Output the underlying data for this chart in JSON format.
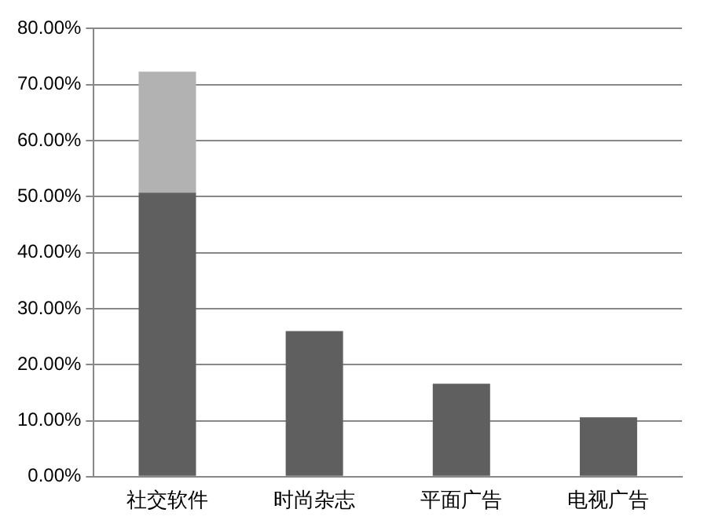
{
  "chart_data": {
    "type": "bar",
    "stacked": true,
    "categories": [
      "社交软件",
      "时尚杂志",
      "平面广告",
      "电视广告"
    ],
    "series": [
      {
        "color": "#5f5f5f",
        "values": [
          50.7,
          26.0,
          16.6,
          10.6
        ]
      },
      {
        "color": "#b2b2b2",
        "values": [
          21.6,
          null,
          null,
          null
        ]
      }
    ],
    "ylim": [
      0,
      80
    ],
    "yticks": [
      {
        "value": 0,
        "label": "0.00%"
      },
      {
        "value": 10,
        "label": "10.00%"
      },
      {
        "value": 20,
        "label": "20.00%"
      },
      {
        "value": 30,
        "label": "30.00%"
      },
      {
        "value": 40,
        "label": "40.00%"
      },
      {
        "value": 50,
        "label": "50.00%"
      },
      {
        "value": 60,
        "label": "60.00%"
      },
      {
        "value": 70,
        "label": "70.00%"
      },
      {
        "value": 80,
        "label": "80.00%"
      }
    ],
    "grid": "y",
    "legend": false
  }
}
